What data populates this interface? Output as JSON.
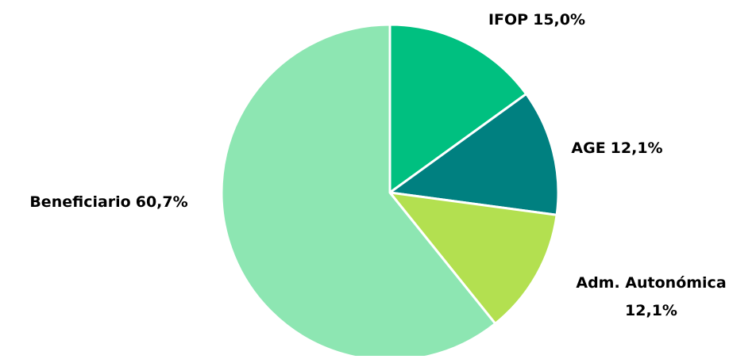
{
  "chart_data": {
    "type": "pie",
    "categories": [
      "IFOP",
      "AGE",
      "Adm. Autonómica",
      "Beneficiario"
    ],
    "values": [
      15.0,
      12.1,
      12.1,
      60.7
    ],
    "value_labels": [
      "15,0%",
      "12,1%",
      "12,1%",
      "60,7%"
    ],
    "colors": [
      "#00c080",
      "#008080",
      "#b3e050",
      "#8de6b2"
    ]
  }
}
